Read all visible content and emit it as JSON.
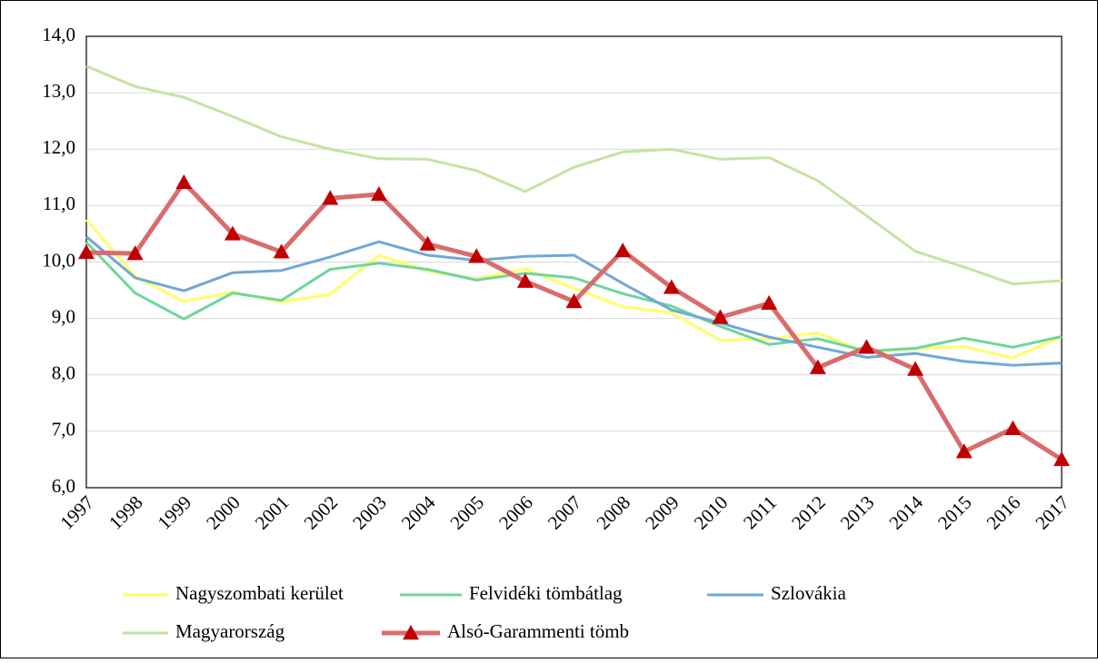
{
  "chart_data": {
    "type": "line",
    "categories": [
      "1997",
      "1998",
      "1999",
      "2000",
      "2001",
      "2002",
      "2003",
      "2004",
      "2005",
      "2006",
      "2007",
      "2008",
      "2009",
      "2010",
      "2011",
      "2012",
      "2013",
      "2014",
      "2015",
      "2016",
      "2017"
    ],
    "ylim": [
      6,
      14
    ],
    "yticks": [
      {
        "value": 6,
        "label": "6,0"
      },
      {
        "value": 7,
        "label": "7,0"
      },
      {
        "value": 8,
        "label": "8,0"
      },
      {
        "value": 9,
        "label": "9,0"
      },
      {
        "value": 10,
        "label": "10,0"
      },
      {
        "value": 11,
        "label": "11,0"
      },
      {
        "value": 12,
        "label": "12,0"
      },
      {
        "value": 13,
        "label": "13,0"
      },
      {
        "value": 14,
        "label": "14,0"
      }
    ],
    "grid": true,
    "series": [
      {
        "name": "Nagyszombati kerület",
        "color": "#ffff66",
        "values": [
          10.75,
          9.75,
          9.3,
          9.47,
          9.29,
          9.43,
          10.12,
          9.84,
          9.7,
          9.88,
          9.53,
          9.21,
          9.1,
          8.61,
          8.64,
          8.74,
          8.4,
          8.46,
          8.5,
          8.3,
          8.68
        ]
      },
      {
        "name": "Felvidéki tömbátlag",
        "color": "#70d69c",
        "values": [
          10.35,
          9.45,
          8.99,
          9.45,
          9.32,
          9.87,
          9.98,
          9.87,
          9.68,
          9.8,
          9.72,
          9.44,
          9.22,
          8.86,
          8.54,
          8.64,
          8.42,
          8.47,
          8.65,
          8.49,
          8.68
        ]
      },
      {
        "name": "Szlovákia",
        "color": "#6fa8d8",
        "values": [
          10.45,
          9.72,
          9.49,
          9.81,
          9.85,
          10.09,
          10.36,
          10.12,
          10.03,
          10.1,
          10.12,
          9.62,
          9.15,
          8.92,
          8.67,
          8.49,
          8.31,
          8.38,
          8.24,
          8.17,
          8.21
        ]
      },
      {
        "name": "Magyarország",
        "color": "#c6e2a4",
        "values": [
          13.47,
          13.11,
          12.92,
          12.58,
          12.22,
          12.0,
          11.83,
          11.82,
          11.62,
          11.25,
          11.68,
          11.95,
          12.0,
          11.82,
          11.85,
          11.44,
          10.82,
          10.19,
          9.91,
          9.61,
          9.67
        ]
      },
      {
        "name": "Alsó-Garammenti  tömb",
        "color": "#d96c6c",
        "marker": "triangle",
        "marker_color": "#c00000",
        "values": [
          10.17,
          10.15,
          11.41,
          10.5,
          10.18,
          11.13,
          11.2,
          10.32,
          10.1,
          9.66,
          9.3,
          10.2,
          9.55,
          9.02,
          9.27,
          8.13,
          8.49,
          8.1,
          6.64,
          7.05,
          6.5
        ]
      }
    ]
  }
}
